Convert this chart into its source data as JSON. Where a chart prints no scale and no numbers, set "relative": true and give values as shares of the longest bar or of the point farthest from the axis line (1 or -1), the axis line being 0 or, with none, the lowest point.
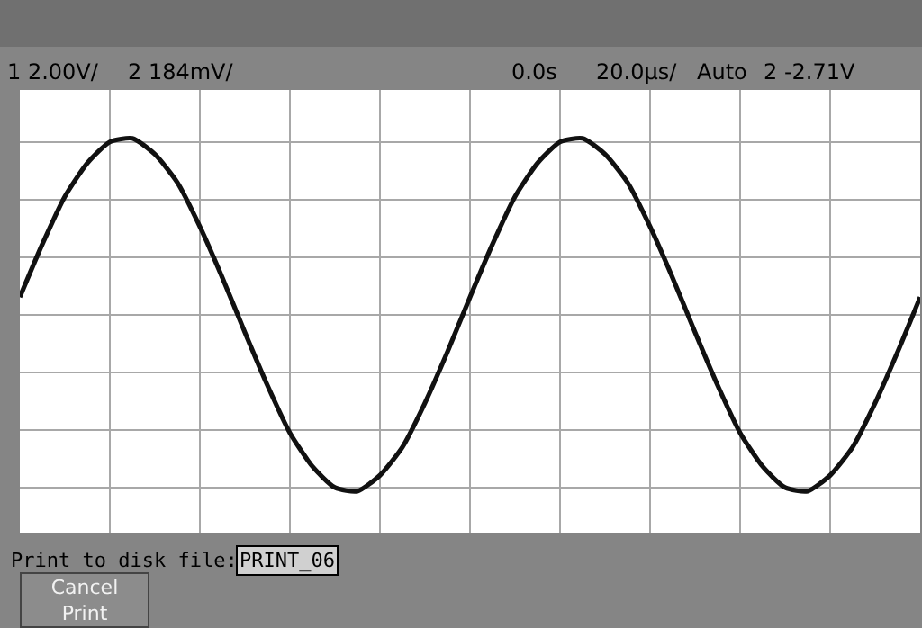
{
  "chart_data": {
    "type": "line",
    "relative": true,
    "grid": true,
    "marker": "none",
    "line_style": "solid",
    "categories": [
      null,
      null,
      null,
      null,
      null,
      null,
      null,
      null,
      null,
      null,
      null,
      null,
      null,
      null,
      null,
      null,
      null,
      null,
      null,
      null,
      null,
      null,
      null,
      null,
      null,
      null,
      null,
      null,
      null,
      null,
      null,
      null,
      null,
      null,
      null,
      null,
      null,
      null,
      null,
      null,
      null
    ],
    "series": [
      {
        "color": "#111111",
        "values": [
          0.1,
          0.4,
          0.67,
          0.86,
          0.98,
          1.0,
          0.91,
          0.75,
          0.5,
          0.21,
          -0.1,
          -0.4,
          -0.67,
          -0.86,
          -0.98,
          -1.0,
          -0.91,
          -0.75,
          -0.5,
          -0.21,
          0.1,
          0.4,
          0.67,
          0.86,
          0.98,
          1.0,
          0.91,
          0.75,
          0.5,
          0.21,
          -0.1,
          -0.4,
          -0.67,
          -0.86,
          -0.98,
          -1.0,
          -0.91,
          -0.75,
          -0.5,
          -0.21,
          0.1
        ]
      }
    ],
    "annotations": [
      "1 2.00V/",
      "2 184mV/",
      "0.0s",
      "20.0µs/",
      "Auto",
      "2 -2.71V",
      "Print to disk file:",
      "PRINT_06",
      "Cancel Print"
    ]
  }
}
